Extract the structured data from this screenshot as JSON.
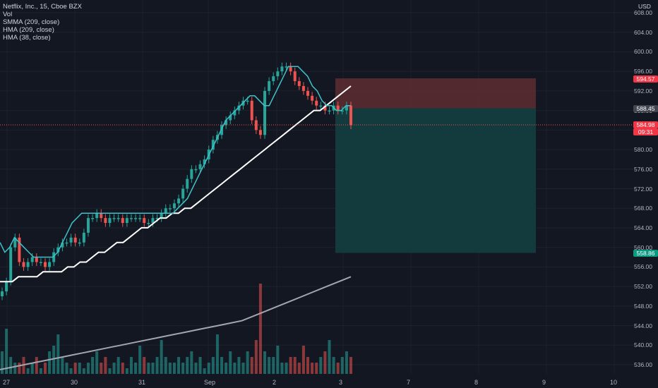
{
  "legend": {
    "title": "Netflix, Inc., 15, Cboe BZX",
    "vol": "Vol",
    "smma": "SMMA (209, close)",
    "hma1": "HMA (209, close)",
    "hma2": "HMA (38, close)"
  },
  "currency": "USD",
  "labels": {
    "stop": "594.57",
    "entry": "588.45",
    "current": "584.98",
    "countdown": "09:31",
    "target": "558.86"
  },
  "colors": {
    "background": "#131722",
    "up": "#26a69a",
    "down": "#ef5350",
    "hma_fast": "#3fc1c9",
    "hma_slow": "#ffffff",
    "smma": "#a3a6af",
    "stop_zone": "#5b2b32",
    "target_zone": "#133c3f"
  },
  "chart_data": {
    "type": "candlestick",
    "y_ticks": [
      "608.00",
      "604.00",
      "600.00",
      "596.00",
      "592.00",
      "588.00",
      "584.00",
      "580.00",
      "576.00",
      "572.00",
      "568.00",
      "564.00",
      "560.00",
      "556.00",
      "552.00",
      "548.00",
      "544.00",
      "540.00",
      "536.00"
    ],
    "x_ticks": [
      "27",
      "30",
      "31",
      "Sep",
      "2",
      "3",
      "7",
      "8",
      "9",
      "10"
    ],
    "ylim": [
      534,
      609
    ],
    "price_path": [
      551,
      553,
      560,
      562,
      557,
      556,
      557,
      558,
      557,
      557,
      556,
      557,
      559,
      560,
      561,
      561,
      562,
      561,
      561,
      563,
      566,
      566,
      567,
      566,
      565,
      566,
      566,
      566,
      565,
      566,
      566,
      566,
      566,
      565,
      565,
      566,
      566,
      567,
      568,
      568,
      569,
      570,
      572,
      574,
      576,
      576,
      577,
      578,
      580,
      582,
      583,
      585,
      586,
      587,
      588,
      589,
      590,
      590,
      586,
      584,
      583,
      592,
      594,
      595,
      596,
      597,
      597,
      596,
      594,
      593,
      592,
      591,
      590,
      589,
      589,
      588,
      588,
      589,
      588,
      588,
      589,
      585
    ],
    "hma_fast_path": [
      561,
      559,
      560,
      562,
      561,
      560,
      559,
      558,
      558,
      558,
      558,
      558,
      559,
      561,
      563,
      565,
      566,
      567,
      567,
      567,
      567,
      567,
      567,
      567,
      567,
      567,
      567,
      567,
      567,
      567,
      567,
      567,
      567,
      567,
      567,
      567,
      567,
      568,
      569,
      570,
      572,
      574,
      576,
      578,
      580,
      582,
      584,
      586,
      587,
      588,
      589,
      590,
      591,
      591,
      590,
      589,
      589,
      591,
      593,
      595,
      597,
      597,
      597,
      596,
      595,
      593,
      592,
      590,
      589,
      589,
      588,
      588,
      589,
      589
    ],
    "hma_slow_path": [
      553,
      553,
      553,
      554,
      554,
      554,
      554,
      555,
      555,
      555,
      555,
      556,
      556,
      557,
      557,
      558,
      559,
      559,
      560,
      561,
      561,
      562,
      563,
      564,
      564,
      565,
      566,
      566,
      567,
      567,
      568,
      568,
      569,
      570,
      571,
      572,
      573,
      574,
      575,
      576,
      577,
      578,
      579,
      580,
      581,
      582,
      583,
      584,
      585,
      586,
      587,
      588,
      588,
      589,
      590,
      591,
      592,
      593
    ],
    "smma_path": [
      535,
      535.5,
      536,
      536.5,
      537,
      537.5,
      538,
      538.5,
      539,
      539.5,
      540,
      540.5,
      541,
      541.5,
      542,
      542.5,
      543,
      543.5,
      544,
      544.5,
      545,
      546,
      547,
      548,
      549,
      550,
      551,
      552,
      553,
      554
    ],
    "volume": [
      4,
      8,
      3,
      2,
      2,
      3,
      1,
      2,
      3,
      1,
      2,
      4,
      5,
      7,
      3,
      2,
      1,
      2,
      2,
      1,
      2,
      3,
      4,
      2,
      3,
      1,
      2,
      3,
      2,
      1,
      3,
      2,
      5,
      3,
      2,
      2,
      3,
      6,
      3,
      2,
      2,
      3,
      2,
      3,
      4,
      2,
      3,
      1,
      2,
      3,
      7,
      3,
      2,
      4,
      2,
      3,
      2,
      4,
      3,
      6,
      16,
      4,
      3,
      3,
      5,
      2,
      2,
      3,
      3,
      2,
      5,
      3,
      2,
      2,
      3,
      4,
      6,
      3,
      2,
      3,
      4,
      3
    ]
  }
}
